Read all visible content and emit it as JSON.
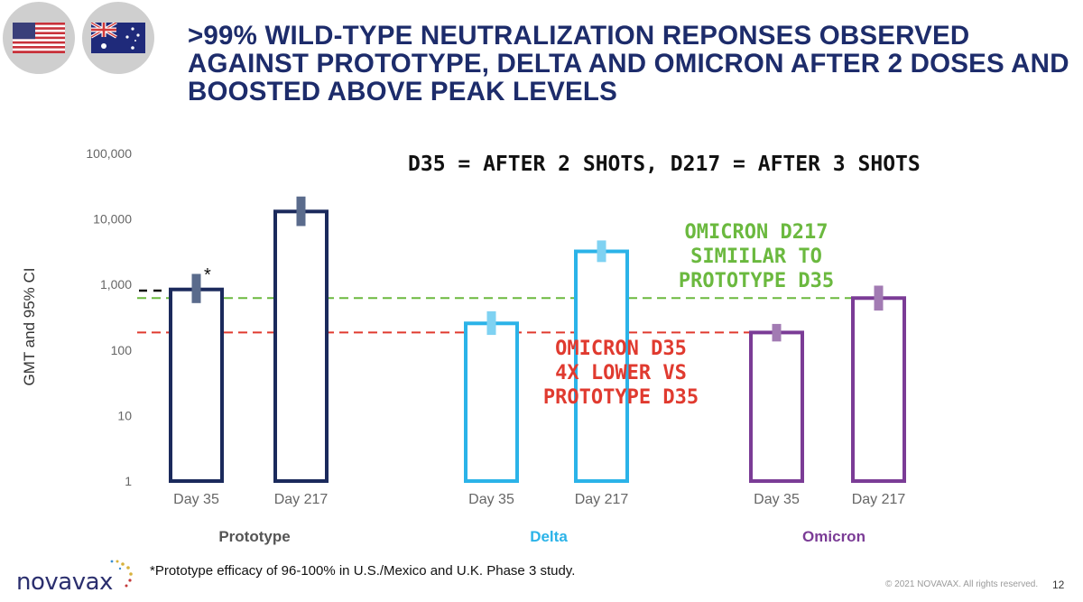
{
  "header": {
    "title_lines": [
      ">99% WILD-TYPE NEUTRALIZATION REPONSES OBSERVED",
      "AGAINST PROTOTYPE, DELTA AND OMICRON AFTER 2 DOSES AND",
      "BOOSTED ABOVE PEAK LEVELS"
    ],
    "flags": [
      "us-flag-icon",
      "australia-flag-icon"
    ]
  },
  "annotations": {
    "top_note": "D35 = AFTER 2 SHOTS, D217 = AFTER 3 SHOTS",
    "green_note_lines": [
      "OMICRON D217",
      "SIMIILAR TO",
      "PROTOTYPE D35"
    ],
    "red_note_lines": [
      "OMICRON D35",
      "4X LOWER VS",
      "PROTOTYPE D35"
    ],
    "asterisk": "*"
  },
  "chart_data": {
    "type": "bar",
    "ylabel": "GMT and 95% CI",
    "yscale": "log",
    "ylim": [
      1,
      100000
    ],
    "yticks": [
      1,
      10,
      100,
      1000,
      10000,
      100000
    ],
    "ytick_labels": [
      "1",
      "10",
      "100",
      "1,000",
      "10,000",
      "100,000"
    ],
    "groups": [
      {
        "name": "Prototype",
        "color": "#1b2a5c",
        "ci_color": "#5a6b8c",
        "bars": [
          {
            "label": "Day 35",
            "value": 840,
            "ci": [
              520,
              1450
            ]
          },
          {
            "label": "Day 217",
            "value": 13000,
            "ci": [
              7800,
              22000
            ]
          }
        ]
      },
      {
        "name": "Delta",
        "color": "#2bb3e8",
        "ci_color": "#7fd2f2",
        "bars": [
          {
            "label": "Day 35",
            "value": 255,
            "ci": [
              170,
              390
            ]
          },
          {
            "label": "Day 217",
            "value": 3200,
            "ci": [
              2200,
              4700
            ]
          }
        ]
      },
      {
        "name": "Omicron",
        "color": "#7b3c96",
        "ci_color": "#a27bb3",
        "bars": [
          {
            "label": "Day 35",
            "value": 185,
            "ci": [
              135,
              250
            ]
          },
          {
            "label": "Day 217",
            "value": 620,
            "ci": [
              400,
              960
            ]
          }
        ]
      }
    ],
    "reference_lines": [
      {
        "value": 620,
        "color": "#6bb93f",
        "style": "dashed"
      },
      {
        "value": 185,
        "color": "#e03a2f",
        "style": "dashed"
      }
    ],
    "colors": {
      "green_note": "#6bb93f",
      "red_note": "#e03a2f"
    }
  },
  "footer": {
    "footnote": "*Prototype efficacy of 96-100% in U.S./Mexico and U.K. Phase 3 study.",
    "copyright": "© 2021 NOVAVAX. All rights reserved.",
    "page_number": "12",
    "logo_text": "novavax"
  }
}
